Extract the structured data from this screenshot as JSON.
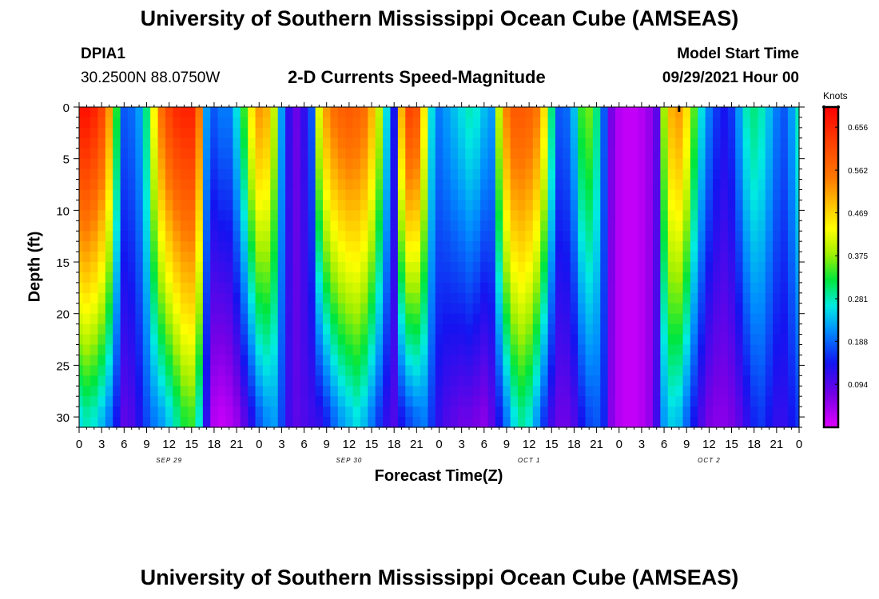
{
  "header": {
    "title_top": "University of Southern Mississippi Ocean Cube (AMSEAS)",
    "title_bottom": "University of Southern Mississippi Ocean Cube (AMSEAS)",
    "station_id": "DPIA1",
    "station_coords": "30.2500N  88.0750W",
    "chart_subtitle": "2-D Currents Speed-Magnitude",
    "model_start_label": "Model Start Time",
    "model_start_value": "09/29/2021 Hour 00"
  },
  "chart_data": {
    "type": "heatmap",
    "title": "2-D Currents Speed-Magnitude",
    "xlabel": "Forecast Time(Z)",
    "ylabel": "Depth (ft)",
    "units": "Knots",
    "x_range_hours": [
      0,
      96
    ],
    "y_range_ft": [
      0,
      31
    ],
    "x_tick_hours": [
      0,
      3,
      6,
      9,
      12,
      15,
      18,
      21,
      24,
      27,
      30,
      33,
      36,
      39,
      42,
      45,
      48,
      51,
      54,
      57,
      60,
      63,
      66,
      69,
      72,
      75,
      78,
      81,
      84,
      87,
      90,
      93,
      96
    ],
    "x_tick_labels": [
      "0",
      "3",
      "6",
      "9",
      "12",
      "15",
      "18",
      "21",
      "0",
      "3",
      "6",
      "9",
      "12",
      "15",
      "18",
      "21",
      "0",
      "3",
      "6",
      "9",
      "12",
      "15",
      "18",
      "21",
      "0",
      "3",
      "6",
      "9",
      "12",
      "15",
      "18",
      "21",
      "0"
    ],
    "date_labels": [
      {
        "hour": 12,
        "text": "SEP 29"
      },
      {
        "hour": 36,
        "text": "SEP 30"
      },
      {
        "hour": 60,
        "text": "OCT 1"
      },
      {
        "hour": 84,
        "text": "OCT 2"
      }
    ],
    "y_ticks": [
      0,
      5,
      10,
      15,
      20,
      25,
      30
    ],
    "y_tick_labels": [
      "0",
      "5",
      "10",
      "15",
      "20",
      "25",
      "30"
    ],
    "colorbar": {
      "range": [
        0.0,
        0.7
      ],
      "tick_values": [
        0.094,
        0.188,
        0.281,
        0.375,
        0.469,
        0.562,
        0.656
      ],
      "tick_labels": [
        "0.094",
        "0.188",
        "0.281",
        "0.375",
        "0.469",
        "0.562",
        "0.656"
      ]
    },
    "marker_hour": 80,
    "columns": [
      {
        "hour": 0,
        "surface": 0.68,
        "bottom": 0.26,
        "bottom_depth": 30
      },
      {
        "hour": 1,
        "surface": 0.68,
        "bottom": 0.28,
        "bottom_depth": 30
      },
      {
        "hour": 2,
        "surface": 0.66,
        "bottom": 0.27,
        "bottom_depth": 30
      },
      {
        "hour": 3,
        "surface": 0.62,
        "bottom": 0.24,
        "bottom_depth": 30
      },
      {
        "hour": 4,
        "surface": 0.52,
        "bottom": 0.2,
        "bottom_depth": 30
      },
      {
        "hour": 5,
        "surface": 0.33,
        "bottom": 0.14,
        "bottom_depth": 30
      },
      {
        "hour": 6,
        "surface": 0.18,
        "bottom": 0.09,
        "bottom_depth": 30
      },
      {
        "hour": 7,
        "surface": 0.19,
        "bottom": 0.1,
        "bottom_depth": 30
      },
      {
        "hour": 8,
        "surface": 0.22,
        "bottom": 0.13,
        "bottom_depth": 30
      },
      {
        "hour": 9,
        "surface": 0.3,
        "bottom": 0.17,
        "bottom_depth": 30
      },
      {
        "hour": 10,
        "surface": 0.44,
        "bottom": 0.2,
        "bottom_depth": 30
      },
      {
        "hour": 11,
        "surface": 0.56,
        "bottom": 0.22,
        "bottom_depth": 30
      },
      {
        "hour": 12,
        "surface": 0.62,
        "bottom": 0.25,
        "bottom_depth": 30
      },
      {
        "hour": 13,
        "surface": 0.65,
        "bottom": 0.29,
        "bottom_depth": 30
      },
      {
        "hour": 14,
        "surface": 0.66,
        "bottom": 0.33,
        "bottom_depth": 30
      },
      {
        "hour": 15,
        "surface": 0.66,
        "bottom": 0.34,
        "bottom_depth": 30
      },
      {
        "hour": 16,
        "surface": 0.55,
        "bottom": 0.27,
        "bottom_depth": 30
      },
      {
        "hour": 17,
        "surface": 0.22,
        "bottom": 0.12,
        "bottom_depth": 30
      },
      {
        "hour": 18,
        "surface": 0.18,
        "bottom": 0.03,
        "bottom_depth": 30
      },
      {
        "hour": 19,
        "surface": 0.2,
        "bottom": 0.02,
        "bottom_depth": 30
      },
      {
        "hour": 20,
        "surface": 0.2,
        "bottom": 0.03,
        "bottom_depth": 30
      },
      {
        "hour": 21,
        "surface": 0.26,
        "bottom": 0.05,
        "bottom_depth": 30
      },
      {
        "hour": 22,
        "surface": 0.34,
        "bottom": 0.09,
        "bottom_depth": 30
      },
      {
        "hour": 23,
        "surface": 0.45,
        "bottom": 0.13,
        "bottom_depth": 30
      },
      {
        "hour": 24,
        "surface": 0.52,
        "bottom": 0.18,
        "bottom_depth": 30
      },
      {
        "hour": 25,
        "surface": 0.5,
        "bottom": 0.21,
        "bottom_depth": 30
      },
      {
        "hour": 26,
        "surface": 0.4,
        "bottom": 0.22,
        "bottom_depth": 30
      },
      {
        "hour": 27,
        "surface": 0.22,
        "bottom": 0.17,
        "bottom_depth": 30
      },
      {
        "hour": 28,
        "surface": 0.12,
        "bottom": 0.11,
        "bottom_depth": 30
      },
      {
        "hour": 29,
        "surface": 0.08,
        "bottom": 0.09,
        "bottom_depth": 30
      },
      {
        "hour": 30,
        "surface": 0.12,
        "bottom": 0.1,
        "bottom_depth": 30
      },
      {
        "hour": 31,
        "surface": 0.18,
        "bottom": 0.11,
        "bottom_depth": 30
      },
      {
        "hour": 32,
        "surface": 0.42,
        "bottom": 0.12,
        "bottom_depth": 30
      },
      {
        "hour": 33,
        "surface": 0.52,
        "bottom": 0.15,
        "bottom_depth": 30
      },
      {
        "hour": 34,
        "surface": 0.56,
        "bottom": 0.19,
        "bottom_depth": 30
      },
      {
        "hour": 35,
        "surface": 0.58,
        "bottom": 0.22,
        "bottom_depth": 30
      },
      {
        "hour": 36,
        "surface": 0.59,
        "bottom": 0.24,
        "bottom_depth": 30
      },
      {
        "hour": 37,
        "surface": 0.58,
        "bottom": 0.26,
        "bottom_depth": 30
      },
      {
        "hour": 38,
        "surface": 0.56,
        "bottom": 0.24,
        "bottom_depth": 30
      },
      {
        "hour": 39,
        "surface": 0.5,
        "bottom": 0.2,
        "bottom_depth": 30
      },
      {
        "hour": 40,
        "surface": 0.4,
        "bottom": 0.16,
        "bottom_depth": 30
      },
      {
        "hour": 41,
        "surface": 0.26,
        "bottom": 0.12,
        "bottom_depth": 30
      },
      {
        "hour": 42,
        "surface": 0.14,
        "bottom": 0.1,
        "bottom_depth": 30
      },
      {
        "hour": 43,
        "surface": 0.5,
        "bottom": 0.14,
        "bottom_depth": 30
      },
      {
        "hour": 44,
        "surface": 0.62,
        "bottom": 0.17,
        "bottom_depth": 30
      },
      {
        "hour": 45,
        "surface": 0.6,
        "bottom": 0.19,
        "bottom_depth": 30
      },
      {
        "hour": 46,
        "surface": 0.45,
        "bottom": 0.2,
        "bottom_depth": 30
      },
      {
        "hour": 47,
        "surface": 0.26,
        "bottom": 0.16,
        "bottom_depth": 30
      },
      {
        "hour": 48,
        "surface": 0.2,
        "bottom": 0.12,
        "bottom_depth": 30
      },
      {
        "hour": 49,
        "surface": 0.22,
        "bottom": 0.1,
        "bottom_depth": 30
      },
      {
        "hour": 50,
        "surface": 0.24,
        "bottom": 0.09,
        "bottom_depth": 30
      },
      {
        "hour": 51,
        "surface": 0.26,
        "bottom": 0.08,
        "bottom_depth": 30
      },
      {
        "hour": 52,
        "surface": 0.28,
        "bottom": 0.08,
        "bottom_depth": 30
      },
      {
        "hour": 53,
        "surface": 0.27,
        "bottom": 0.07,
        "bottom_depth": 30
      },
      {
        "hour": 54,
        "surface": 0.24,
        "bottom": 0.06,
        "bottom_depth": 30
      },
      {
        "hour": 55,
        "surface": 0.22,
        "bottom": 0.09,
        "bottom_depth": 30
      },
      {
        "hour": 56,
        "surface": 0.4,
        "bottom": 0.14,
        "bottom_depth": 30
      },
      {
        "hour": 57,
        "surface": 0.54,
        "bottom": 0.2,
        "bottom_depth": 30
      },
      {
        "hour": 58,
        "surface": 0.59,
        "bottom": 0.26,
        "bottom_depth": 30
      },
      {
        "hour": 59,
        "surface": 0.59,
        "bottom": 0.29,
        "bottom_depth": 30
      },
      {
        "hour": 60,
        "surface": 0.58,
        "bottom": 0.27,
        "bottom_depth": 30
      },
      {
        "hour": 61,
        "surface": 0.55,
        "bottom": 0.22,
        "bottom_depth": 30
      },
      {
        "hour": 62,
        "surface": 0.46,
        "bottom": 0.16,
        "bottom_depth": 30
      },
      {
        "hour": 63,
        "surface": 0.3,
        "bottom": 0.11,
        "bottom_depth": 30
      },
      {
        "hour": 64,
        "surface": 0.18,
        "bottom": 0.08,
        "bottom_depth": 30
      },
      {
        "hour": 65,
        "surface": 0.19,
        "bottom": 0.08,
        "bottom_depth": 30
      },
      {
        "hour": 66,
        "surface": 0.24,
        "bottom": 0.1,
        "bottom_depth": 30
      },
      {
        "hour": 67,
        "surface": 0.34,
        "bottom": 0.14,
        "bottom_depth": 30
      },
      {
        "hour": 68,
        "surface": 0.36,
        "bottom": 0.17,
        "bottom_depth": 30
      },
      {
        "hour": 69,
        "surface": 0.3,
        "bottom": 0.18,
        "bottom_depth": 30
      },
      {
        "hour": 70,
        "surface": 0.18,
        "bottom": 0.15,
        "bottom_depth": 30
      },
      {
        "hour": 71,
        "surface": 0.07,
        "bottom": 0.06,
        "bottom_depth": 30
      },
      {
        "hour": 72,
        "surface": 0.03,
        "bottom": 0.03,
        "bottom_depth": 30
      },
      {
        "hour": 73,
        "surface": 0.02,
        "bottom": 0.02,
        "bottom_depth": 30
      },
      {
        "hour": 74,
        "surface": 0.02,
        "bottom": 0.02,
        "bottom_depth": 30
      },
      {
        "hour": 75,
        "surface": 0.03,
        "bottom": 0.03,
        "bottom_depth": 30
      },
      {
        "hour": 76,
        "surface": 0.05,
        "bottom": 0.05,
        "bottom_depth": 30
      },
      {
        "hour": 77,
        "surface": 0.09,
        "bottom": 0.11,
        "bottom_depth": 30
      },
      {
        "hour": 78,
        "surface": 0.38,
        "bottom": 0.22,
        "bottom_depth": 30
      },
      {
        "hour": 79,
        "surface": 0.5,
        "bottom": 0.25,
        "bottom_depth": 30
      },
      {
        "hour": 80,
        "surface": 0.52,
        "bottom": 0.24,
        "bottom_depth": 30
      },
      {
        "hour": 81,
        "surface": 0.46,
        "bottom": 0.19,
        "bottom_depth": 30
      },
      {
        "hour": 82,
        "surface": 0.35,
        "bottom": 0.14,
        "bottom_depth": 30
      },
      {
        "hour": 83,
        "surface": 0.26,
        "bottom": 0.1,
        "bottom_depth": 30
      },
      {
        "hour": 84,
        "surface": 0.2,
        "bottom": 0.07,
        "bottom_depth": 30
      },
      {
        "hour": 85,
        "surface": 0.16,
        "bottom": 0.06,
        "bottom_depth": 30
      },
      {
        "hour": 86,
        "surface": 0.14,
        "bottom": 0.06,
        "bottom_depth": 30
      },
      {
        "hour": 87,
        "surface": 0.16,
        "bottom": 0.07,
        "bottom_depth": 30
      },
      {
        "hour": 88,
        "surface": 0.22,
        "bottom": 0.09,
        "bottom_depth": 30
      },
      {
        "hour": 89,
        "surface": 0.28,
        "bottom": 0.12,
        "bottom_depth": 30
      },
      {
        "hour": 90,
        "surface": 0.3,
        "bottom": 0.15,
        "bottom_depth": 30
      },
      {
        "hour": 91,
        "surface": 0.28,
        "bottom": 0.16,
        "bottom_depth": 30
      },
      {
        "hour": 92,
        "surface": 0.24,
        "bottom": 0.14,
        "bottom_depth": 30
      },
      {
        "hour": 93,
        "surface": 0.2,
        "bottom": 0.12,
        "bottom_depth": 30
      },
      {
        "hour": 94,
        "surface": 0.18,
        "bottom": 0.12,
        "bottom_depth": 30
      },
      {
        "hour": 95,
        "surface": 0.22,
        "bottom": 0.14,
        "bottom_depth": 30
      },
      {
        "hour": 96,
        "surface": 0.28,
        "bottom": 0.16,
        "bottom_depth": 30
      }
    ]
  }
}
